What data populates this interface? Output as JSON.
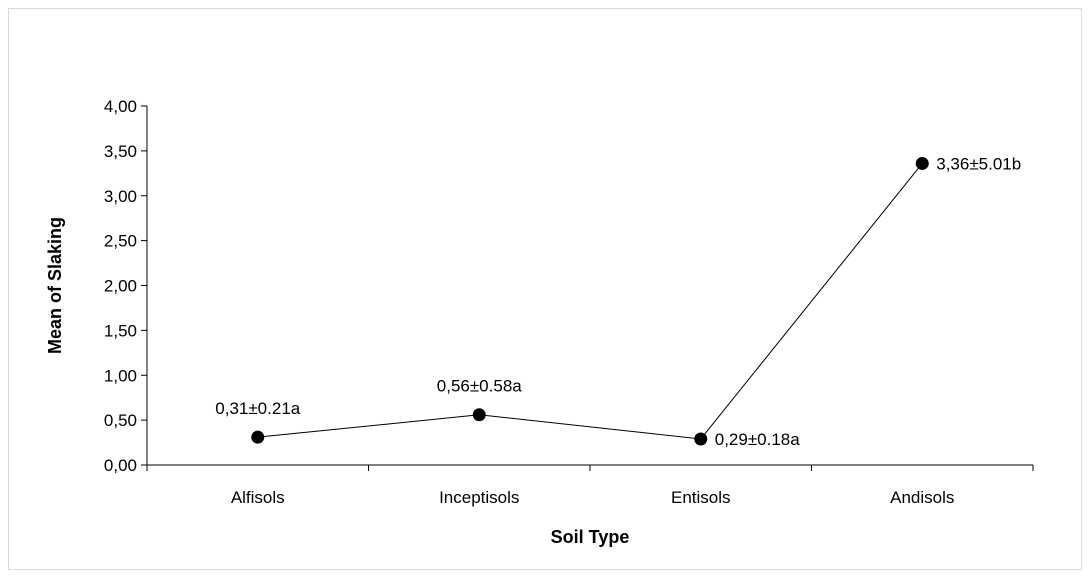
{
  "chart_data": {
    "type": "line",
    "xlabel": "Soil Type",
    "ylabel": "Mean of Slaking",
    "categories": [
      "Alfisols",
      "Inceptisols",
      "Entisols",
      "Andisols"
    ],
    "values": [
      0.31,
      0.56,
      0.29,
      3.36
    ],
    "data_labels": [
      "0,31±0.21a",
      "0,56±0.58a",
      "0,29±0.18a",
      "3,36±5.01b"
    ],
    "ylim": [
      0,
      4
    ],
    "yticks": [
      0,
      0.5,
      1,
      1.5,
      2,
      2.5,
      3,
      3.5,
      4
    ],
    "ytick_labels": [
      "0,00",
      "0,50",
      "1,00",
      "1,50",
      "2,00",
      "2,50",
      "3,00",
      "3,50",
      "4,00"
    ],
    "grid": false,
    "legend": "none",
    "line_color": "#000000",
    "marker_color": "#000000"
  }
}
